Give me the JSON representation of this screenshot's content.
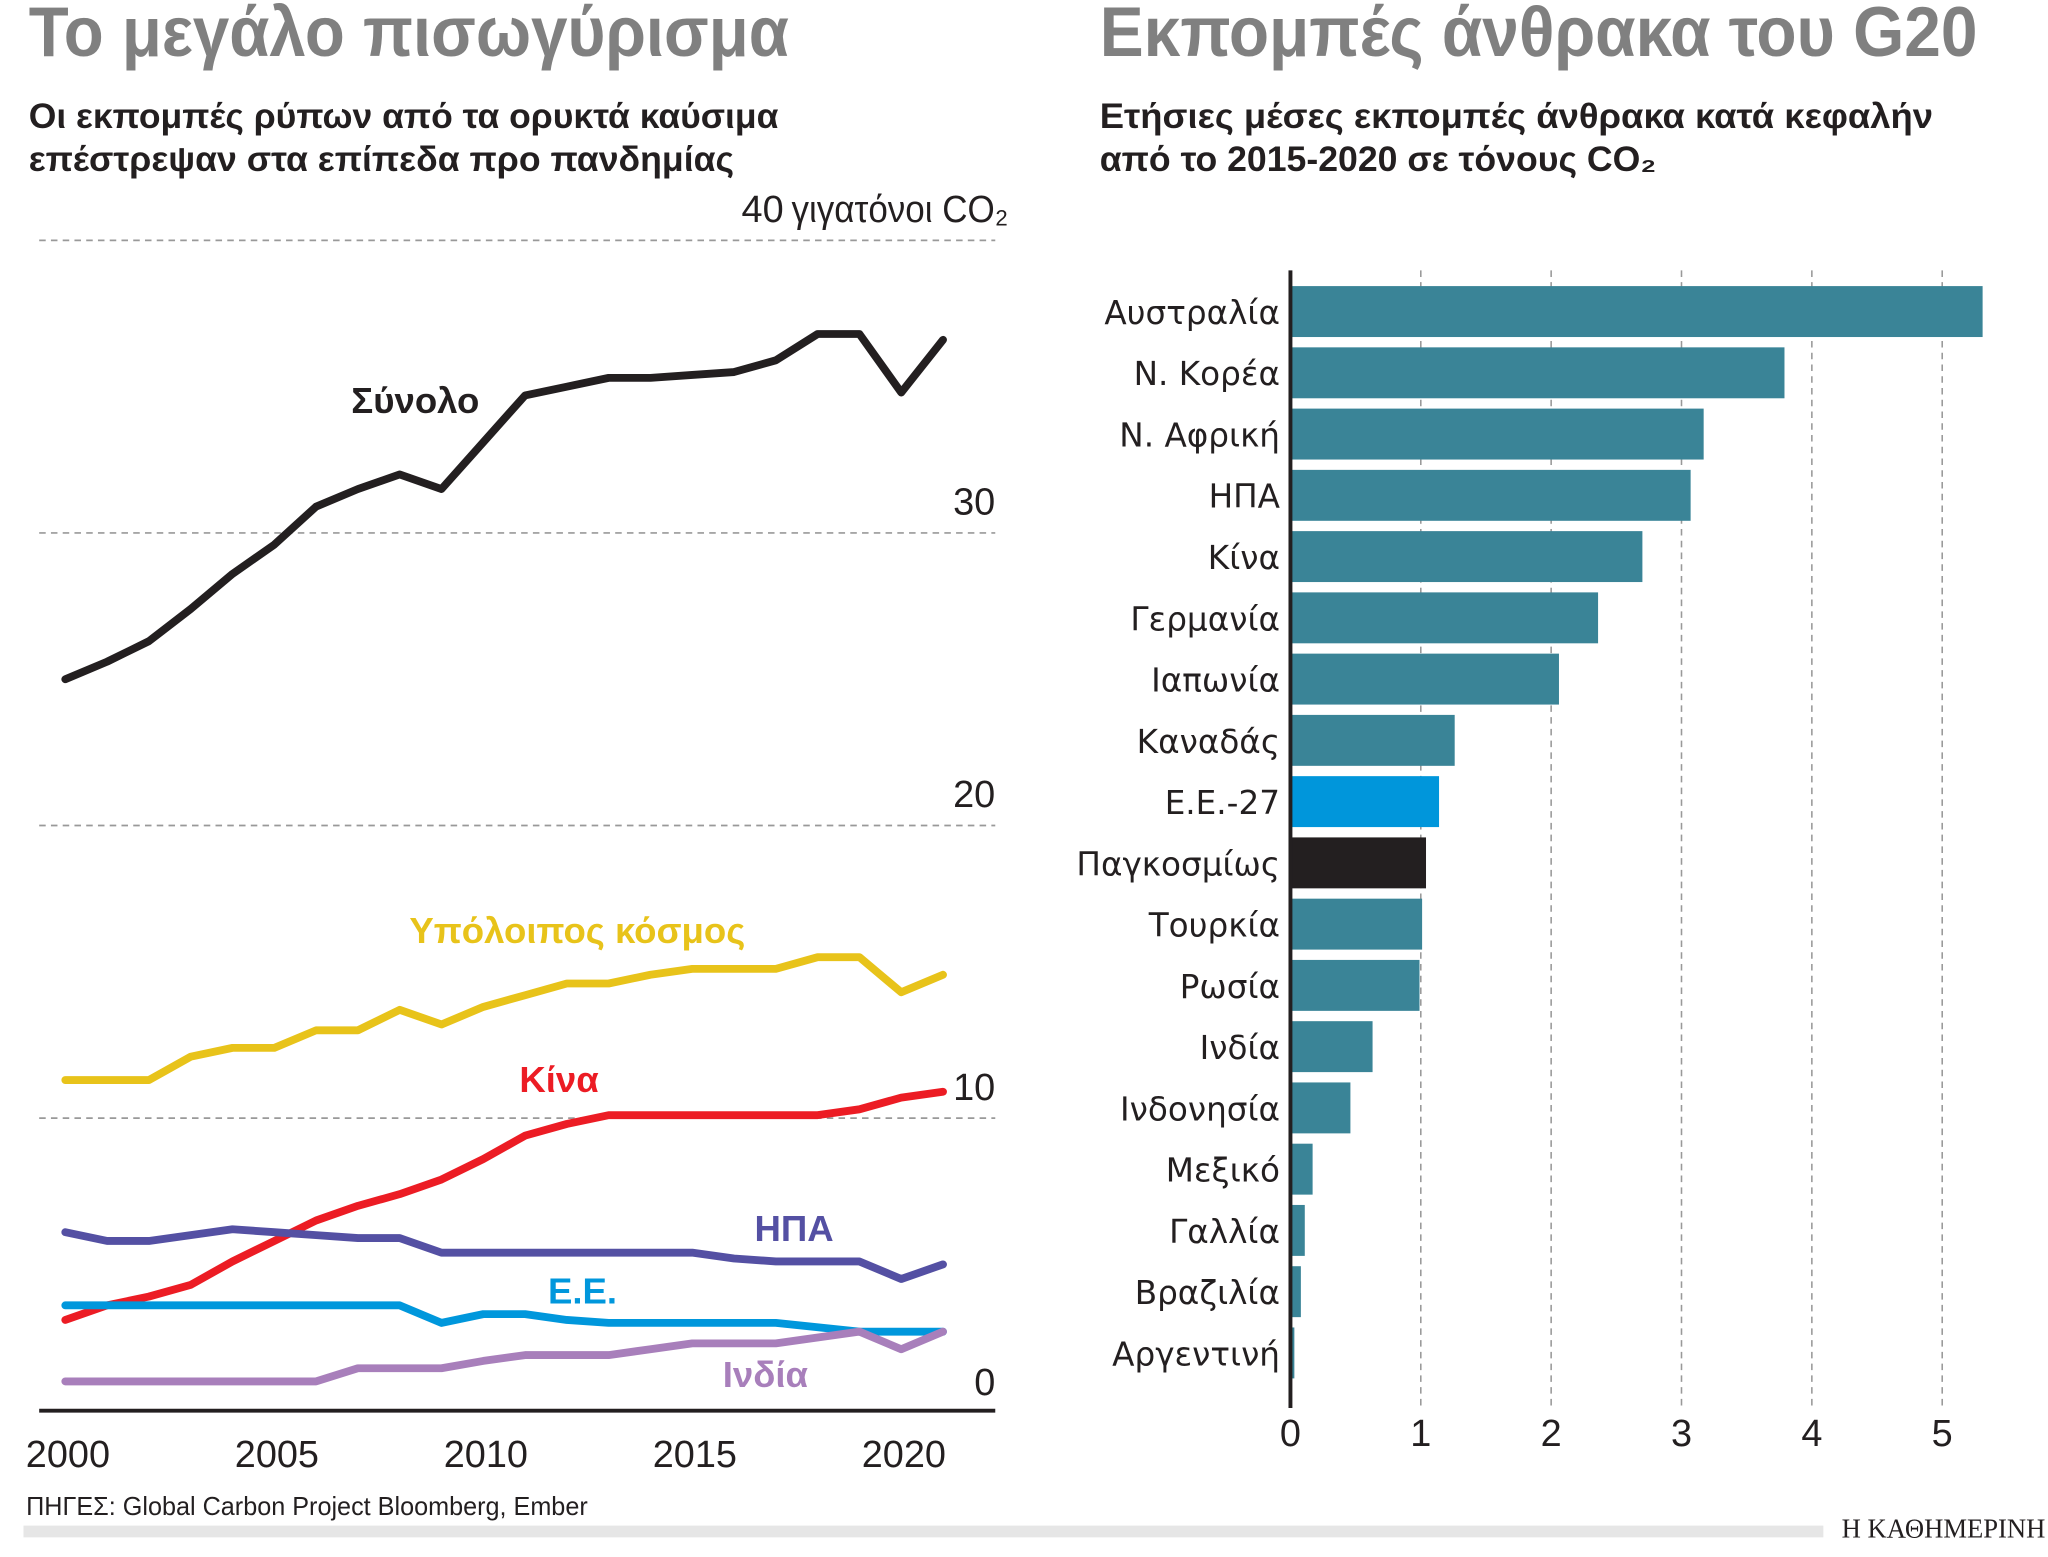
{
  "left": {
    "title": "Το μεγάλο πισωγύρισμα",
    "subtitle_line1": "Οι εκπομπές ρύπων από τα ορυκτά καύσιμα",
    "subtitle_line2": "επέστρεψαν στα επίπεδα προ πανδημίας",
    "unit_label": "γιγατόνοι CO₂",
    "source": "ΠΗΓΕΣ: Global Carbon Project Bloomberg, Ember"
  },
  "right": {
    "title": "Εκπομπές άνθρακα του G20",
    "subtitle_line1": "Ετήσιες μέσες εκπομπές άνθρακα κατά κεφαλήν",
    "subtitle_line2": "από το 2015-2020 σε τόνους CO₂"
  },
  "brand": "Η ΚΑΘΗΜΕΡΙΝΗ",
  "chart_data": [
    {
      "type": "line",
      "title": "Το μεγάλο πισωγύρισμα",
      "ylabel": "γιγατόνοι CO₂",
      "ylim": [
        0,
        40
      ],
      "yticks": [
        0,
        10,
        20,
        30,
        40
      ],
      "xlim": [
        2000,
        2021
      ],
      "xticks": [
        2000,
        2005,
        2010,
        2015,
        2020
      ],
      "grid": true,
      "x": [
        2000,
        2001,
        2002,
        2003,
        2004,
        2005,
        2006,
        2007,
        2008,
        2009,
        2010,
        2011,
        2012,
        2013,
        2014,
        2015,
        2016,
        2017,
        2018,
        2019,
        2020,
        2021
      ],
      "series": [
        {
          "name": "Σύνολο",
          "color": "#231f20",
          "values": [
            25.0,
            25.6,
            26.3,
            27.4,
            28.6,
            29.6,
            30.9,
            31.5,
            32.0,
            31.5,
            33.1,
            34.7,
            35.0,
            35.3,
            35.3,
            35.4,
            35.5,
            35.9,
            36.8,
            36.8,
            34.8,
            36.6
          ]
        },
        {
          "name": "Υπόλοιπος κόσμος",
          "color": "#e8c31a",
          "values": [
            11.3,
            11.3,
            11.3,
            12.1,
            12.4,
            12.4,
            13.0,
            13.0,
            13.7,
            13.2,
            13.8,
            14.2,
            14.6,
            14.6,
            14.9,
            15.1,
            15.1,
            15.1,
            15.5,
            15.5,
            14.3,
            14.9
          ]
        },
        {
          "name": "Κίνα",
          "color": "#ec1c24",
          "values": [
            3.1,
            3.6,
            3.9,
            4.3,
            5.1,
            5.8,
            6.5,
            7.0,
            7.4,
            7.9,
            8.6,
            9.4,
            9.8,
            10.1,
            10.1,
            10.1,
            10.1,
            10.1,
            10.1,
            10.3,
            10.7,
            10.9
          ]
        },
        {
          "name": "ΗΠΑ",
          "color": "#5450a3",
          "values": [
            6.1,
            5.8,
            5.8,
            6.0,
            6.2,
            6.1,
            6.0,
            5.9,
            5.9,
            5.4,
            5.4,
            5.4,
            5.4,
            5.4,
            5.4,
            5.4,
            5.2,
            5.1,
            5.1,
            5.1,
            4.5,
            5.0
          ]
        },
        {
          "name": "Ε.Ε.",
          "color": "#0097dc",
          "values": [
            3.6,
            3.6,
            3.6,
            3.6,
            3.6,
            3.6,
            3.6,
            3.6,
            3.6,
            3.0,
            3.3,
            3.3,
            3.1,
            3.0,
            3.0,
            3.0,
            3.0,
            3.0,
            2.85,
            2.7,
            2.7,
            2.7
          ]
        },
        {
          "name": "Ινδία",
          "color": "#a87fbb",
          "values": [
            1.0,
            1.0,
            1.0,
            1.0,
            1.0,
            1.0,
            1.0,
            1.45,
            1.45,
            1.45,
            1.7,
            1.9,
            1.9,
            1.9,
            2.1,
            2.3,
            2.3,
            2.3,
            2.5,
            2.7,
            2.1,
            2.7
          ]
        }
      ]
    },
    {
      "type": "bar",
      "orientation": "horizontal",
      "title": "Εκπομπές άνθρακα του G20",
      "xlim": [
        0,
        5.3
      ],
      "xticks": [
        0,
        1,
        2,
        3,
        4,
        5
      ],
      "grid": true,
      "default_color": "#3a8497",
      "categories": [
        "Αυστραλία",
        "Ν. Κορέα",
        "Ν. Αφρική",
        "ΗΠΑ",
        "Κίνα",
        "Γερμανία",
        "Ιαπωνία",
        "Καναδάς",
        "Ε.Ε.-27",
        "Παγκοσμίως",
        "Τουρκία",
        "Ρωσία",
        "Ινδία",
        "Ινδονησία",
        "Μεξικό",
        "Γαλλία",
        "Βραζιλία",
        "Αργεντινή"
      ],
      "values": [
        5.31,
        3.79,
        3.17,
        3.07,
        2.7,
        2.36,
        2.06,
        1.26,
        1.14,
        1.04,
        1.01,
        0.99,
        0.63,
        0.46,
        0.17,
        0.11,
        0.08,
        0.03
      ],
      "highlight_colors": {
        "Ε.Ε.-27": "#0096db",
        "Παγκοσμίως": "#231f20"
      }
    }
  ]
}
